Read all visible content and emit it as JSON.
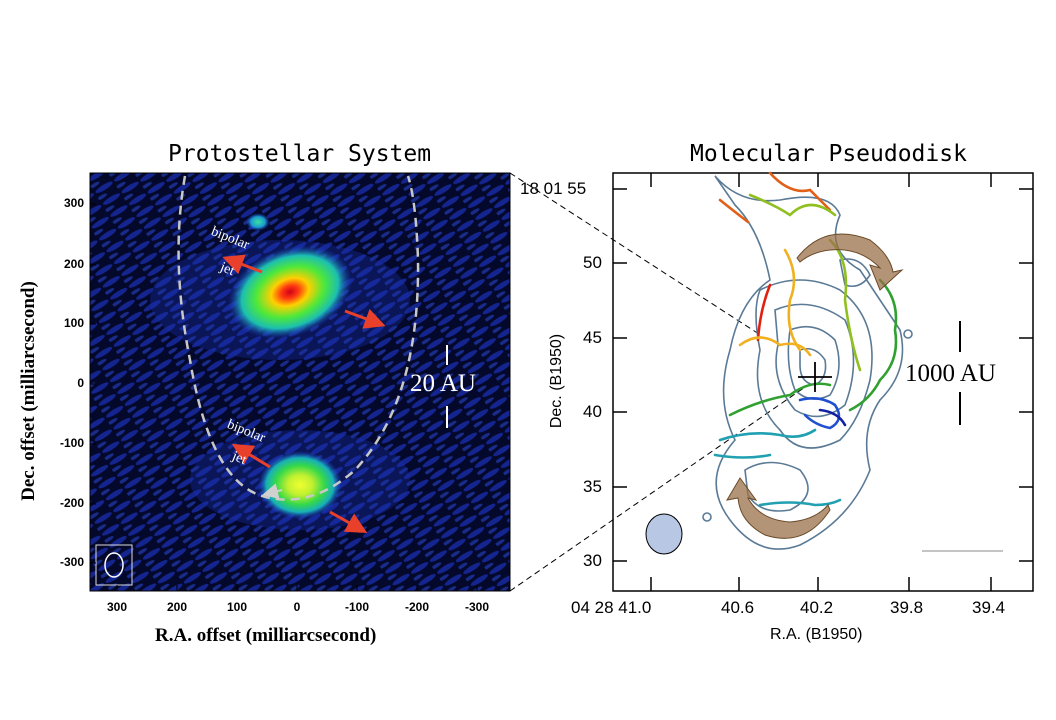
{
  "left_panel": {
    "title": "Protostellar System",
    "x_axis_label": "R.A. offset (milliarcsecond)",
    "y_axis_label": "Dec. offset (milliarcsecond)",
    "x_ticks": [
      "300",
      "200",
      "100",
      "0",
      "-100",
      "-200",
      "-300"
    ],
    "y_ticks": [
      "300",
      "200",
      "100",
      "0",
      "-100",
      "-200",
      "-300"
    ],
    "scale_bar_label": "20 AU",
    "jet_label_top": [
      "bipolar",
      "jet"
    ],
    "jet_label_bottom": [
      "bipolar",
      "jet"
    ],
    "colors": {
      "background": "#050a2e",
      "jet_arrow": "#e8402a",
      "orbit": "#c8c8c8"
    }
  },
  "right_panel": {
    "title": "Molecular Pseudodisk",
    "x_axis_label": "R.A. (B1950)",
    "y_axis_label": "Dec. (B1950)",
    "x_ticks": [
      "04 28 41.0",
      "40.6",
      "40.2",
      "39.8",
      "39.4"
    ],
    "y_ticks": [
      "18 01 55",
      "50",
      "45",
      "40",
      "35",
      "30"
    ],
    "scale_bar_label": "1000 AU",
    "colors": {
      "contour": "#5a7a96",
      "rotation_arrow": "#9a7048",
      "beam": "#b8c8e4"
    }
  }
}
